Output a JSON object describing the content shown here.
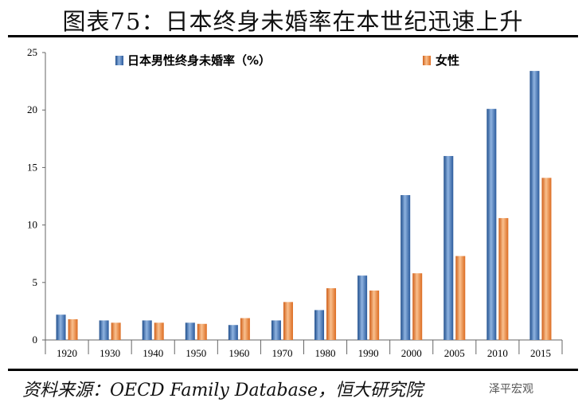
{
  "title": "图表75：日本终身未婚率在本世纪迅速上升",
  "source": "资料来源：OECD Family Database，恒大研究院",
  "watermark": "泽平宏观",
  "colors": {
    "male": "#3b6fb5",
    "female": "#ee7d31"
  },
  "chart_data": {
    "type": "bar",
    "title": "",
    "xlabel": "",
    "ylabel": "",
    "ylim": [
      0,
      25
    ],
    "yticks": [
      0,
      5,
      10,
      15,
      20,
      25
    ],
    "categories": [
      "1920",
      "1930",
      "1940",
      "1950",
      "1960",
      "1970",
      "1980",
      "1990",
      "2000",
      "2005",
      "2010",
      "2015"
    ],
    "series": [
      {
        "name": "日本男性终身未婚率（%）",
        "values": [
          2.2,
          1.7,
          1.7,
          1.5,
          1.3,
          1.7,
          2.6,
          5.6,
          12.6,
          16.0,
          20.1,
          23.4
        ]
      },
      {
        "name": "女性",
        "values": [
          1.8,
          1.5,
          1.5,
          1.4,
          1.9,
          3.3,
          4.5,
          4.3,
          5.8,
          7.3,
          10.6,
          14.1
        ]
      }
    ],
    "legend_position": "top"
  }
}
